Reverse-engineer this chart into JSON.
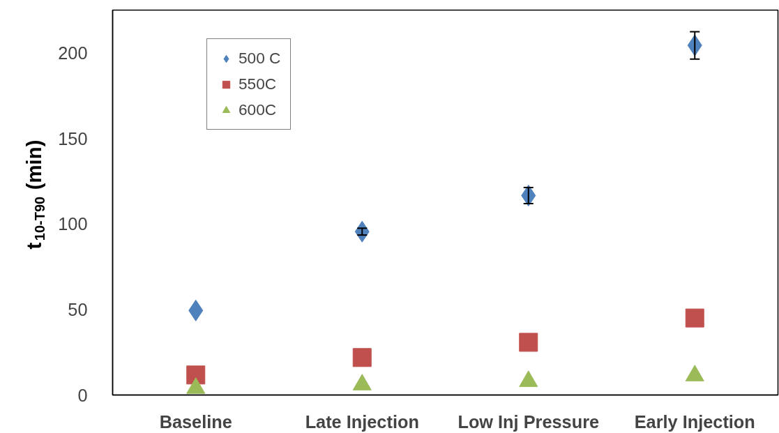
{
  "chart_data": {
    "type": "scatter",
    "ylabel": "t$_{10-T90}$ (min)",
    "categories": [
      "Baseline",
      "Late Injection",
      "Low Inj Pressure",
      "Early Injection"
    ],
    "series": [
      {
        "name": "500 C",
        "color": "#4f81bd",
        "marker": "diamond",
        "values": [
          49.4,
          95.5,
          116.6,
          204.4
        ],
        "errors": [
          null,
          2,
          4.7,
          8
        ]
      },
      {
        "name": "550C",
        "color": "#c0504d",
        "marker": "square",
        "values": [
          11.7,
          21.9,
          30.8,
          45
        ]
      },
      {
        "name": "600C",
        "color": "#9bbb59",
        "marker": "triangle",
        "values": [
          4,
          6,
          8,
          11.3
        ]
      }
    ],
    "ylim": [
      0,
      225
    ],
    "yticks": [
      0,
      50,
      100,
      150,
      200
    ],
    "grid": false,
    "legend": "top left"
  }
}
